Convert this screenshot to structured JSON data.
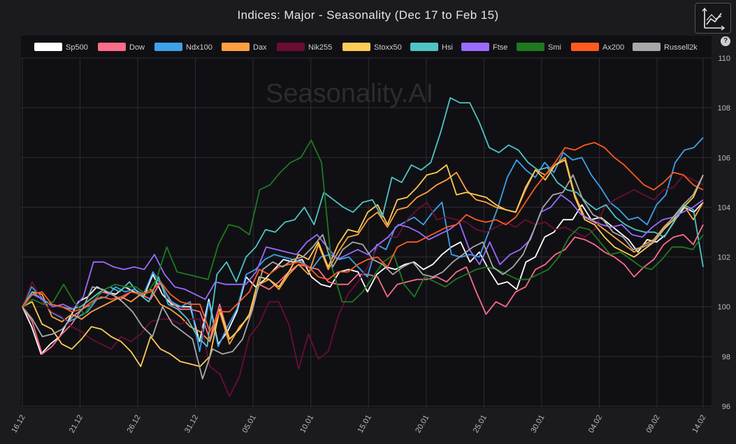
{
  "header": {
    "title": "Indices: Major - Seasonality (Dec 17 to Feb 15)",
    "help_label": "?",
    "chart_type_icon": "line-chart-icon"
  },
  "watermark": "Seasonality.AI",
  "colors": {
    "background": "#1a1a1f",
    "plot_background": "#101014",
    "grid": "#2c2c32"
  },
  "chart_data": {
    "type": "line",
    "title": "Indices: Major - Seasonality (Dec 17 to Feb 15)",
    "xlabel": "",
    "ylabel": "",
    "ylim": [
      96,
      110
    ],
    "yticks": [
      96,
      98,
      100,
      102,
      104,
      106,
      108,
      110
    ],
    "x_tick_labels": [
      "16.12",
      "21.12",
      "26.12",
      "31.12",
      "05.01",
      "10.01",
      "15.01",
      "20.01",
      "25.01",
      "30.01",
      "04.02",
      "09.02",
      "14.02"
    ],
    "x_tick_index": [
      0,
      5,
      10,
      15,
      20,
      25,
      30,
      35,
      40,
      45,
      50,
      55,
      59
    ],
    "grid": true,
    "legend_position": "top",
    "series": [
      {
        "name": "Sp500",
        "color": "#ffffff",
        "values": [
          100,
          99.2,
          98.1,
          98.5,
          98.8,
          99.5,
          100.2,
          100.4,
          100.8,
          100.6,
          100.5,
          100.8,
          100.6,
          100.4,
          101.3,
          100.5,
          100.1,
          100,
          100,
          98.6,
          100.3,
          98.5,
          99,
          99.8,
          101.2,
          100.8,
          101.1,
          101.5,
          101.9,
          101.8,
          101.9,
          101.2,
          100.9,
          100.8,
          101.4,
          101.5,
          101.4,
          100.6,
          101.3,
          101.6,
          101.5,
          101.7,
          101.8,
          101.5,
          101.7,
          102.1,
          102.4,
          102.6,
          101.8,
          102.2,
          101.5,
          100.9,
          101,
          100.7,
          101.8,
          102,
          102.8,
          103,
          103.5,
          103.5,
          104.1,
          103.5,
          103.6,
          103.3,
          103,
          102.7,
          102.2,
          102.7,
          102.6,
          102.9,
          103.5,
          104,
          103.8,
          104.2
        ]
      },
      {
        "name": "Dow",
        "color": "#ff6b8a",
        "values": [
          100,
          99.4,
          98.1,
          98.4,
          98.9,
          99.3,
          99.9,
          100.1,
          100.6,
          100.5,
          100.3,
          100.6,
          100.5,
          100.3,
          101,
          100.2,
          99.9,
          99.9,
          99.8,
          98.7,
          100.1,
          98.7,
          99.1,
          99.7,
          100.9,
          100.7,
          101,
          101.4,
          101.7,
          101.6,
          101.5,
          101,
          100.9,
          100.9,
          101.3,
          101.3,
          101.2,
          100.4,
          100.9,
          101,
          101.1,
          101.1,
          101.2,
          101,
          101.4,
          101.6,
          100.6,
          99.7,
          100.2,
          100,
          100.6,
          100.8,
          101.5,
          101.7,
          102.1,
          102.3,
          102.8,
          102.7,
          102.5,
          102.2,
          102,
          101.7,
          101.2,
          101.6,
          101.9,
          102.5,
          102.8,
          102.9,
          102.5,
          103.3
        ]
      },
      {
        "name": "Ndx100",
        "color": "#3da2e8",
        "values": [
          100,
          100.8,
          100.4,
          99.8,
          99.6,
          99.4,
          99.6,
          99.8,
          100.3,
          100.4,
          100.8,
          100.6,
          100.7,
          100.5,
          101.4,
          100.8,
          100.2,
          100,
          100.2,
          98.2,
          100.2,
          98.4,
          99.2,
          99.9,
          101.3,
          101.5,
          101.9,
          102.1,
          102,
          101.9,
          101.8,
          101.5,
          102,
          102.1,
          101.9,
          102,
          101.6,
          101.2,
          102.5,
          102.3,
          103.2,
          103.4,
          103.6,
          103.3,
          103.8,
          104.2,
          102.1,
          102,
          102.1,
          102,
          103,
          104,
          105.2,
          105.9,
          105.5,
          105.2,
          105.8,
          105.4,
          106.2,
          105.9,
          106,
          105.3,
          104.8,
          104.2,
          103.9,
          103.5,
          103.6,
          103.3,
          104.1,
          104.5,
          105.8,
          106.3,
          106.4,
          106.8
        ]
      },
      {
        "name": "Dax",
        "color": "#ffa040",
        "values": [
          100,
          100.6,
          100.5,
          99.6,
          99.4,
          99.7,
          99.5,
          99.8,
          100,
          100.2,
          100.4,
          100.2,
          100.5,
          100.7,
          100.1,
          99.9,
          99.6,
          99.2,
          99,
          98.6,
          99.8,
          98.5,
          99.2,
          99.6,
          100.9,
          101.1,
          100.7,
          101.3,
          101.7,
          101.3,
          102.5,
          101.5,
          102.2,
          102.8,
          102.9,
          103.5,
          103.8,
          103.2,
          103.9,
          104,
          104.4,
          104.6,
          104.9,
          105.1,
          105.4,
          104.7,
          104.3,
          104.2,
          104,
          103.9,
          103.8,
          104.7,
          105.5,
          105.3,
          105.7,
          106,
          104.5,
          103.6,
          103.4,
          103.1,
          102.8,
          102.5,
          102.2,
          102.5,
          102.7,
          103.2,
          103.6,
          104.1,
          103.5,
          104.2
        ]
      },
      {
        "name": "Nik255",
        "color": "#6b0d33",
        "values": [
          100,
          101,
          100.2,
          99.8,
          99.6,
          99.2,
          99,
          98.7,
          98.5,
          98.3,
          98.8,
          98.6,
          98.9,
          99.4,
          99.5,
          99.5,
          99.3,
          99.5,
          99.5,
          97.6,
          97.3,
          96.4,
          97.2,
          98.8,
          99.3,
          100.2,
          100.2,
          99.3,
          97.5,
          98.9,
          97.9,
          98.2,
          99.6,
          100.5,
          101,
          101.6,
          102.4,
          102.8,
          102.8,
          103.5,
          103.9,
          104.2,
          103.5,
          103.6,
          103.5,
          103.4,
          103.1,
          103,
          103.2,
          103.4,
          103.2,
          103.5,
          103.3,
          103.4,
          103.1,
          103.2,
          103,
          102.8,
          103.1,
          104,
          104.3,
          104.5,
          104.7,
          104.5,
          104.3,
          104.7,
          104.8,
          105.3,
          105.1,
          104.9
        ]
      },
      {
        "name": "Stoxx50",
        "color": "#ffcc55",
        "values": [
          100,
          100.2,
          99.3,
          99.1,
          98.5,
          98.3,
          98.7,
          99.2,
          99.1,
          98.8,
          98.6,
          98.2,
          97.6,
          98.8,
          98.3,
          98.1,
          97.8,
          97.7,
          97.6,
          98,
          99.9,
          98.7,
          99.1,
          99.7,
          101.2,
          101.1,
          100.8,
          101.4,
          102.1,
          101.9,
          102.6,
          101.6,
          102.5,
          103.1,
          103,
          103.8,
          104.1,
          103.3,
          104.3,
          104.4,
          104.8,
          105.3,
          105.4,
          105.7,
          104.5,
          104.6,
          104.5,
          104.4,
          104.1,
          103.9,
          103.8,
          104.8,
          105.5,
          105.1,
          105.7,
          105.9,
          104.4,
          103.5,
          103.3,
          102.8,
          102.4,
          102.2,
          102,
          102.3,
          102.6,
          103.1,
          103.5,
          104,
          104.4,
          105.3
        ]
      },
      {
        "name": "Hsi",
        "color": "#4fc4c4",
        "values": [
          100,
          100.6,
          100.3,
          100.1,
          100,
          99.9,
          100,
          100.3,
          100.6,
          100.8,
          100.6,
          101,
          100.5,
          100.2,
          101.2,
          100.1,
          99.9,
          99.5,
          98.8,
          98.4,
          101.3,
          101.8,
          101,
          102,
          102.4,
          103.1,
          103,
          103.4,
          103.5,
          104,
          103.3,
          104.6,
          104.3,
          104,
          103.8,
          104.2,
          104.3,
          103.6,
          105.2,
          105,
          105.7,
          105.5,
          105.8,
          107,
          108.4,
          108.2,
          108.2,
          107.4,
          106.4,
          106.2,
          106.5,
          106.3,
          105.8,
          105.5,
          105.6,
          105,
          104.7,
          104.6,
          104.2,
          103.9,
          104.1,
          103.6,
          103.3,
          103.1,
          103,
          103,
          102.8,
          103.4,
          104.1,
          103.9,
          101.6
        ]
      },
      {
        "name": "Ftse",
        "color": "#9b6bff",
        "values": [
          100,
          100.5,
          100.3,
          100,
          100.1,
          99.9,
          100.4,
          101.8,
          101.8,
          101.6,
          101.5,
          101.6,
          101.5,
          102.1,
          101.3,
          100.8,
          100.7,
          100.5,
          100.3,
          101,
          100.9,
          100.9,
          100.9,
          101.4,
          102.4,
          102.3,
          102.2,
          102.1,
          102.6,
          102.9,
          102.4,
          101.9,
          102.1,
          102.3,
          102.1,
          102.5,
          102.8,
          103.3,
          103.2,
          103,
          102.7,
          102.9,
          103.1,
          103.4,
          102.3,
          101.7,
          102.6,
          101.7,
          102.1,
          102.3,
          102.7,
          103.8,
          104,
          104.5,
          104.2,
          103.7,
          103.5,
          103.3,
          103.2,
          103.3,
          102.9,
          102.8,
          103.2,
          103.5,
          103.6,
          103.8,
          104,
          104.3
        ]
      },
      {
        "name": "Smi",
        "color": "#1e7a1e",
        "values": [
          100,
          100.3,
          100.1,
          100.2,
          100.9,
          100.2,
          99.7,
          100.3,
          100.7,
          100.9,
          100.8,
          100.8,
          100.5,
          101.1,
          102.4,
          101.4,
          101.3,
          101.2,
          101.1,
          102.5,
          103.3,
          103.2,
          102.9,
          104.7,
          104.9,
          105.4,
          105.8,
          106,
          106.7,
          105.8,
          101.6,
          100.2,
          100.2,
          100.6,
          101.2,
          101.8,
          102.1,
          100.9,
          100.4,
          101.2,
          101,
          100.8,
          101.1,
          101.3,
          101.5,
          101.6,
          101.5,
          101.3,
          101.1,
          101.1,
          101.3,
          101.5,
          102,
          102.8,
          103.2,
          103.1,
          102.6,
          102.1,
          102.2,
          101.9,
          101.6,
          101.5,
          101.9,
          102.4,
          102.4,
          102.3,
          102.9
        ]
      },
      {
        "name": "Ax200",
        "color": "#ff5a1f",
        "values": [
          100,
          100.5,
          100.6,
          100.1,
          100,
          99.8,
          99.9,
          100.2,
          100.4,
          100.3,
          100.4,
          100.6,
          100.5,
          100.6,
          101,
          100.5,
          100.2,
          100.1,
          100.1,
          99,
          99.8,
          99.8,
          100.2,
          100.6,
          101.5,
          101.3,
          101.6,
          101.7,
          101.8,
          101.6,
          101.2,
          101.1,
          101.4,
          101.4,
          101.7,
          101.9,
          102,
          101.6,
          102.4,
          102.6,
          102.6,
          102.8,
          103,
          103.2,
          103.3,
          103.7,
          103.5,
          103.4,
          103.5,
          103.3,
          103.6,
          104.2,
          104.8,
          105.3,
          105.8,
          106.4,
          106.3,
          106.5,
          106.6,
          106.4,
          106,
          105.7,
          105.3,
          104.9,
          104.7,
          105,
          105.4,
          105.3,
          104.9,
          104.7
        ]
      },
      {
        "name": "Russell2k",
        "color": "#a8a8a8",
        "values": [
          100,
          99.5,
          98.8,
          98.9,
          99.1,
          99.6,
          99.9,
          100.8,
          100.7,
          100.5,
          100.2,
          99.8,
          99.2,
          98.8,
          100,
          99.3,
          99,
          98.7,
          97.1,
          98.3,
          98.1,
          98.2,
          98.7,
          99.9,
          101.5,
          101.8,
          101.6,
          101.9,
          102,
          102.4,
          102.9,
          101.6,
          102.3,
          102.6,
          102.5,
          101.9,
          101.7,
          101.3,
          101.6,
          101.8,
          101.3,
          101.2,
          101.4,
          101.8,
          102.1,
          102.4,
          102.6,
          101.6,
          101.3,
          101.6,
          102.1,
          103,
          104,
          104.5,
          104.6,
          105.3,
          104.3,
          103.7,
          103.5,
          103,
          102.8,
          102.3,
          102.4,
          102.6,
          103.1,
          103.6,
          104.1,
          104.5,
          105.3
        ]
      }
    ]
  }
}
